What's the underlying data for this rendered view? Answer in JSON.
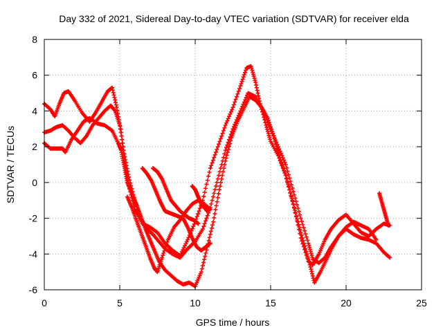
{
  "chart_data": {
    "type": "scatter",
    "title": "Day 332 of 2021, Sidereal Day-to-day VTEC variation (SDTVAR) for receiver elda",
    "xlabel": "GPS time / hours",
    "ylabel": "SDTVAR / TECUs",
    "xlim": [
      0,
      25
    ],
    "ylim": [
      -6,
      8
    ],
    "xticks": [
      "0",
      "5",
      "10",
      "15",
      "20",
      "25"
    ],
    "yticks": [
      "-6",
      "-4",
      "-2",
      "0",
      "2",
      "4",
      "6",
      "8"
    ],
    "xtick_values": [
      0,
      5,
      10,
      15,
      20,
      25
    ],
    "ytick_values": [
      -6,
      -4,
      -2,
      0,
      2,
      4,
      6,
      8
    ],
    "grid": true,
    "marker": "plus",
    "series_color": "#ff0000",
    "series": [
      {
        "x": [
          0,
          0.4,
          0.7,
          1.0,
          1.3,
          1.6,
          2.0,
          2.5,
          3.0,
          3.4,
          3.8,
          4.2,
          4.5,
          4.8,
          5.1,
          5.3,
          5.6,
          6.0,
          6.5,
          7.0,
          7.5,
          8.0,
          8.5,
          9.0,
          9.5,
          10.0,
          10.5,
          11.0,
          11.5,
          12.0,
          12.5,
          13.0,
          13.4,
          13.7,
          14.0,
          14.3,
          14.7,
          15.0,
          15.5,
          16.0,
          16.5,
          17.0,
          17.5,
          17.8,
          18.2,
          18.6,
          19.0,
          19.5,
          20.0,
          20.5,
          21.0,
          21.5,
          22.0,
          22.5,
          22.9
        ],
        "y": [
          4.4,
          4.1,
          3.7,
          4.4,
          5.0,
          5.1,
          4.6,
          3.9,
          3.4,
          3.9,
          4.5,
          5.1,
          5.3,
          4.2,
          2.8,
          1.2,
          -0.2,
          -1.5,
          -2.3,
          -2.5,
          -2.8,
          -3.4,
          -3.8,
          -4.1,
          -3.2,
          -2.2,
          -1.0,
          0.8,
          2.0,
          3.2,
          4.2,
          5.4,
          6.4,
          6.5,
          5.6,
          4.4,
          3.2,
          2.3,
          1.5,
          0.4,
          -1.2,
          -3.1,
          -4.4,
          -4.6,
          -4.0,
          -3.2,
          -2.6,
          -2.1,
          -1.8,
          -2.3,
          -2.8,
          -3.0,
          -2.6,
          -2.3,
          -2.4
        ]
      },
      {
        "x": [
          0,
          0.4,
          0.8,
          1.2,
          1.6,
          2.0,
          2.4,
          2.8,
          3.2,
          3.6,
          4.0,
          4.4,
          4.7,
          5.0,
          5.3,
          5.6,
          6.0,
          6.4,
          6.8,
          7.2,
          7.6,
          8.0,
          8.5,
          9.0,
          9.5,
          10.0,
          10.5,
          11.0,
          11.5,
          12.0,
          12.5,
          13.0,
          13.5,
          14.0,
          14.5,
          15.0,
          15.5,
          16.0,
          16.5,
          17.0,
          17.5,
          17.8,
          18.2,
          18.6,
          19.0,
          19.5,
          20.0,
          20.5,
          21.0,
          21.5,
          22.0,
          22.5,
          22.9
        ],
        "y": [
          2.8,
          2.9,
          3.1,
          3.2,
          2.9,
          2.5,
          2.2,
          2.6,
          3.2,
          3.6,
          4.0,
          4.3,
          4.0,
          3.2,
          1.6,
          0.3,
          -1.0,
          -2.0,
          -2.6,
          -2.9,
          -3.3,
          -3.7,
          -4.0,
          -4.2,
          -3.7,
          -3.3,
          -2.6,
          -1.4,
          0.2,
          1.8,
          3.0,
          4.0,
          5.0,
          4.8,
          4.0,
          3.0,
          2.0,
          1.0,
          -0.5,
          -2.0,
          -3.4,
          -4.3,
          -4.5,
          -4.2,
          -3.6,
          -3.0,
          -2.6,
          -2.9,
          -3.1,
          -3.2,
          -3.4,
          -3.9,
          -4.2
        ]
      },
      {
        "x": [
          0,
          0.4,
          0.8,
          1.2,
          1.4,
          1.8,
          2.2,
          2.6,
          3.0,
          3.5,
          4.0,
          4.5,
          4.9,
          5.1,
          5.3,
          5.5,
          5.8,
          6.1,
          6.4,
          6.7,
          7.0,
          7.3,
          7.6,
          8.0,
          8.4,
          8.8,
          9.2,
          9.6,
          10.0,
          10.4,
          10.8,
          11.2,
          11.6,
          12.0,
          12.4,
          12.8,
          13.2,
          13.6,
          14.0,
          14.4,
          14.8,
          15.2,
          15.6,
          16.0,
          16.4,
          16.8,
          17.2,
          17.6,
          17.9,
          18.3,
          18.7,
          19.1,
          19.5,
          20.0,
          20.5,
          21.0,
          21.5,
          22.0
        ],
        "y": [
          2.2,
          1.9,
          1.9,
          1.9,
          1.7,
          2.4,
          2.9,
          3.4,
          3.6,
          3.3,
          3.2,
          2.9,
          2.2,
          1.8,
          0.9,
          0.0,
          -0.6,
          -1.2,
          -1.9,
          -2.6,
          -3.2,
          -3.8,
          -4.4,
          -4.9,
          -5.2,
          -5.5,
          -5.7,
          -5.6,
          -5.8,
          -5.0,
          -3.6,
          -2.2,
          -0.4,
          1.2,
          2.5,
          3.4,
          4.1,
          4.8,
          4.6,
          4.2,
          3.6,
          2.6,
          1.4,
          0.4,
          -0.9,
          -2.2,
          -3.4,
          -4.6,
          -5.6,
          -5.0,
          -4.3,
          -3.6,
          -3.0,
          -2.5,
          -2.2,
          -2.4,
          -2.6,
          -3.2
        ]
      },
      {
        "x": [
          5.5,
          5.8,
          6.1,
          6.4,
          6.7,
          7.0,
          7.3,
          7.5,
          7.8,
          8.2,
          8.6,
          9.0,
          9.4,
          9.8,
          10.2,
          10.6,
          11.0
        ],
        "y": [
          -0.8,
          -1.4,
          -2.1,
          -2.8,
          -3.5,
          -4.2,
          -4.8,
          -5.0,
          -4.2,
          -3.2,
          -2.5,
          -2.1,
          -1.6,
          -1.2,
          -1.0,
          -1.2,
          -1.5
        ]
      },
      {
        "x": [
          6.5,
          6.8,
          7.1,
          7.4,
          7.7,
          8.0,
          8.3,
          8.6,
          8.9,
          9.2,
          9.5,
          9.8,
          10.1,
          10.4,
          10.7,
          11.0
        ],
        "y": [
          0.8,
          0.5,
          0.1,
          -0.5,
          -1.1,
          -1.6,
          -1.7,
          -1.8,
          -1.9,
          -2.0,
          -2.5,
          -3.1,
          -3.6,
          -3.8,
          -3.6,
          -3.4
        ]
      },
      {
        "x": [
          7.2,
          7.5,
          7.8,
          8.1,
          8.4,
          8.7,
          9.0,
          9.3,
          9.6,
          9.9,
          10.2
        ],
        "y": [
          0.8,
          0.6,
          0.2,
          -0.4,
          -1.0,
          -1.3,
          -1.6,
          -1.8,
          -2.0,
          -2.1,
          -2.3
        ]
      },
      {
        "x": [
          9.8,
          10.0,
          10.2,
          10.4,
          10.6,
          10.8
        ],
        "y": [
          -0.2,
          -0.4,
          -0.8,
          -1.2,
          -1.4,
          -1.6
        ]
      },
      {
        "x": [
          22.2,
          22.4,
          22.6,
          22.8
        ],
        "y": [
          -0.6,
          -1.2,
          -1.8,
          -2.4
        ]
      }
    ]
  }
}
